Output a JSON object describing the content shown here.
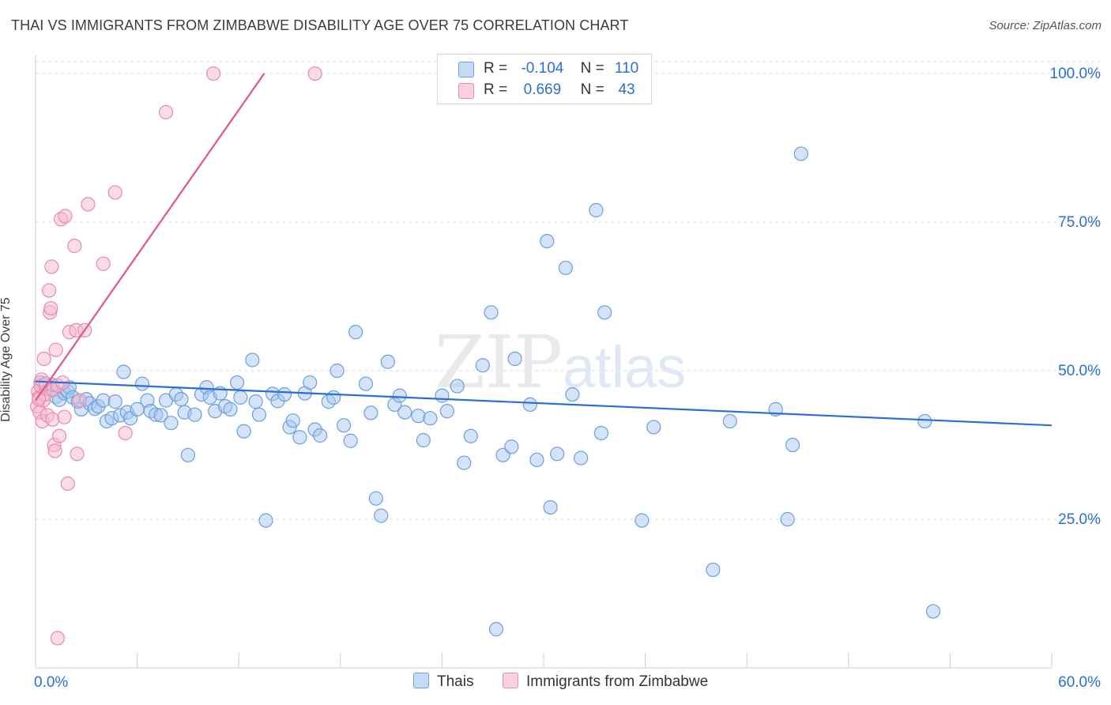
{
  "title": "THAI VS IMMIGRANTS FROM ZIMBABWE DISABILITY AGE OVER 75 CORRELATION CHART",
  "source": "Source: ZipAtlas.com",
  "legend_top": {
    "rows": [
      {
        "r_label": "R =",
        "r_value": "-0.104",
        "n_label": "N =",
        "n_value": "110"
      },
      {
        "r_label": "R =",
        "r_value": "0.669",
        "n_label": "N =",
        "n_value": "43"
      }
    ]
  },
  "legend_bottom": {
    "items": [
      "Thais",
      "Immigrants from Zimbabwe"
    ]
  },
  "watermark": {
    "zip": "ZIP",
    "atlas": "atlas"
  },
  "colors": {
    "blue_fill": "#a9c8ef",
    "blue_stroke": "#6a9fe0",
    "blue_line": "#2a6fd6",
    "pink_fill": "#f6b9cd",
    "pink_stroke": "#ec88a8",
    "pink_line": "#e0548a",
    "axis_text": "#2a6fd6",
    "grid": "#dddddd"
  },
  "chart_data": {
    "type": "scatter",
    "title": "THAI VS IMMIGRANTS FROM ZIMBABWE DISABILITY AGE OVER 75 CORRELATION CHART",
    "xlabel": "",
    "ylabel": "Disability Age Over 75",
    "xlim": [
      0,
      60
    ],
    "ylim": [
      0,
      102
    ],
    "x_tick_labels": [
      "0.0%",
      "60.0%"
    ],
    "y_ticks": [
      25,
      50,
      75,
      100
    ],
    "y_tick_labels": [
      "25.0%",
      "50.0%",
      "75.0%",
      "100.0%"
    ],
    "series": [
      {
        "name": "Thais",
        "color": "#6a9fe0",
        "trend": {
          "x": [
            0,
            60
          ],
          "y": [
            48.2,
            40.8
          ]
        },
        "points": [
          [
            0.3,
            48.0
          ],
          [
            0.6,
            47.5
          ],
          [
            0.9,
            46.8
          ],
          [
            1.0,
            47.6
          ],
          [
            1.2,
            45.6
          ],
          [
            1.4,
            45.1
          ],
          [
            1.7,
            46.2
          ],
          [
            1.9,
            46.5
          ],
          [
            2.0,
            47.2
          ],
          [
            2.2,
            45.5
          ],
          [
            2.5,
            44.8
          ],
          [
            2.7,
            43.5
          ],
          [
            3.0,
            45.2
          ],
          [
            3.2,
            44.5
          ],
          [
            3.5,
            43.6
          ],
          [
            3.7,
            44.0
          ],
          [
            4.0,
            45.0
          ],
          [
            4.2,
            41.5
          ],
          [
            4.5,
            42.0
          ],
          [
            4.7,
            44.8
          ],
          [
            5.0,
            42.5
          ],
          [
            5.2,
            49.8
          ],
          [
            5.4,
            43.0
          ],
          [
            5.6,
            42.0
          ],
          [
            6.0,
            43.5
          ],
          [
            6.3,
            47.8
          ],
          [
            6.6,
            45.0
          ],
          [
            6.8,
            43.2
          ],
          [
            7.1,
            42.6
          ],
          [
            7.4,
            42.5
          ],
          [
            7.7,
            45.0
          ],
          [
            8.0,
            41.2
          ],
          [
            8.3,
            46.0
          ],
          [
            8.6,
            45.2
          ],
          [
            8.8,
            43.0
          ],
          [
            9.0,
            35.8
          ],
          [
            9.4,
            42.6
          ],
          [
            9.8,
            46.0
          ],
          [
            10.1,
            47.2
          ],
          [
            10.3,
            45.5
          ],
          [
            10.6,
            43.2
          ],
          [
            10.9,
            46.2
          ],
          [
            11.2,
            44.0
          ],
          [
            11.5,
            43.5
          ],
          [
            11.9,
            48.0
          ],
          [
            12.1,
            45.5
          ],
          [
            12.3,
            39.8
          ],
          [
            12.8,
            51.8
          ],
          [
            13.0,
            44.8
          ],
          [
            13.2,
            42.6
          ],
          [
            13.6,
            24.8
          ],
          [
            14.0,
            46.1
          ],
          [
            14.3,
            44.9
          ],
          [
            14.7,
            46.0
          ],
          [
            15.0,
            40.5
          ],
          [
            15.2,
            41.6
          ],
          [
            15.6,
            38.8
          ],
          [
            15.9,
            46.2
          ],
          [
            16.2,
            48.0
          ],
          [
            16.5,
            40.1
          ],
          [
            16.8,
            39.1
          ],
          [
            17.3,
            44.8
          ],
          [
            17.6,
            45.5
          ],
          [
            17.8,
            50.0
          ],
          [
            18.2,
            40.8
          ],
          [
            18.6,
            38.2
          ],
          [
            18.9,
            56.5
          ],
          [
            19.5,
            47.8
          ],
          [
            19.8,
            42.9
          ],
          [
            20.1,
            28.5
          ],
          [
            20.4,
            25.6
          ],
          [
            20.8,
            51.5
          ],
          [
            21.2,
            44.3
          ],
          [
            21.5,
            45.8
          ],
          [
            21.8,
            43.0
          ],
          [
            22.6,
            42.4
          ],
          [
            22.9,
            38.3
          ],
          [
            23.3,
            42.0
          ],
          [
            24.0,
            45.8
          ],
          [
            24.3,
            43.2
          ],
          [
            24.9,
            47.4
          ],
          [
            25.3,
            34.5
          ],
          [
            25.7,
            39.0
          ],
          [
            26.4,
            50.9
          ],
          [
            26.9,
            59.8
          ],
          [
            27.2,
            6.5
          ],
          [
            27.6,
            35.8
          ],
          [
            28.1,
            37.2
          ],
          [
            28.3,
            52.0
          ],
          [
            29.2,
            44.3
          ],
          [
            29.6,
            35.0
          ],
          [
            30.2,
            71.8
          ],
          [
            30.4,
            27.0
          ],
          [
            30.8,
            36.0
          ],
          [
            31.3,
            67.3
          ],
          [
            31.7,
            46.0
          ],
          [
            32.2,
            35.3
          ],
          [
            33.1,
            77.0
          ],
          [
            33.4,
            39.5
          ],
          [
            33.6,
            59.8
          ],
          [
            35.8,
            24.8
          ],
          [
            36.5,
            40.5
          ],
          [
            40.0,
            16.5
          ],
          [
            41.0,
            41.5
          ],
          [
            43.7,
            43.5
          ],
          [
            44.4,
            25.0
          ],
          [
            44.7,
            37.5
          ],
          [
            45.2,
            86.5
          ],
          [
            52.5,
            41.5
          ],
          [
            53.0,
            9.5
          ]
        ]
      },
      {
        "name": "Immigrants from Zimbabwe",
        "color": "#ec88a8",
        "trend": {
          "x": [
            0,
            13.5
          ],
          "y": [
            45.0,
            100.0
          ]
        },
        "points": [
          [
            0.1,
            44.0
          ],
          [
            0.15,
            46.5
          ],
          [
            0.2,
            45.5
          ],
          [
            0.25,
            43.0
          ],
          [
            0.3,
            47.5
          ],
          [
            0.35,
            48.5
          ],
          [
            0.4,
            41.5
          ],
          [
            0.45,
            45.0
          ],
          [
            0.5,
            52.0
          ],
          [
            0.55,
            46.0
          ],
          [
            0.6,
            47.8
          ],
          [
            0.7,
            42.5
          ],
          [
            0.8,
            63.5
          ],
          [
            0.85,
            59.8
          ],
          [
            0.9,
            60.5
          ],
          [
            0.95,
            67.5
          ],
          [
            1.0,
            41.8
          ],
          [
            1.05,
            46.8
          ],
          [
            1.1,
            37.5
          ],
          [
            1.15,
            36.5
          ],
          [
            1.2,
            53.5
          ],
          [
            1.3,
            47.5
          ],
          [
            1.4,
            39.0
          ],
          [
            1.5,
            75.5
          ],
          [
            1.6,
            48.0
          ],
          [
            1.7,
            42.2
          ],
          [
            1.75,
            76.0
          ],
          [
            1.9,
            31.0
          ],
          [
            2.0,
            56.5
          ],
          [
            2.3,
            71.0
          ],
          [
            2.4,
            56.8
          ],
          [
            2.45,
            36.0
          ],
          [
            2.6,
            45.0
          ],
          [
            2.9,
            56.8
          ],
          [
            3.1,
            78.0
          ],
          [
            4.0,
            68.0
          ],
          [
            4.7,
            80.0
          ],
          [
            5.3,
            39.5
          ],
          [
            7.7,
            93.5
          ],
          [
            10.5,
            100.0
          ],
          [
            16.5,
            100.0
          ],
          [
            1.3,
            5.0
          ],
          [
            0.2,
            45.2
          ]
        ]
      }
    ]
  }
}
